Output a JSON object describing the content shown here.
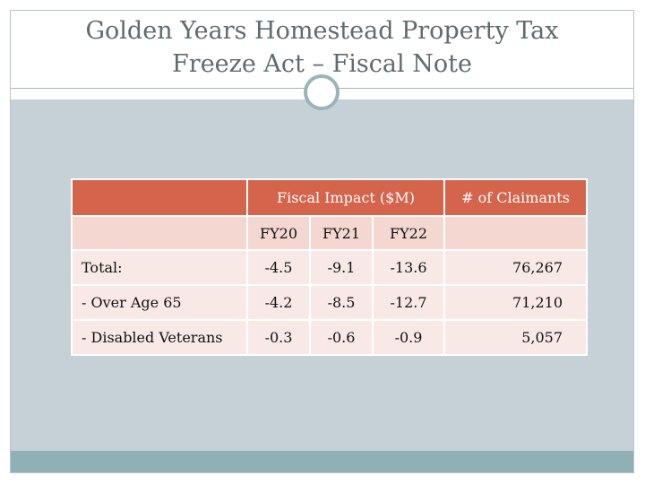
{
  "slide": {
    "title_line1": "Golden Years Homestead Property Tax",
    "title_line2": "Freeze Act – Fiscal Note"
  },
  "table": {
    "header_fiscal": "Fiscal Impact  ($M)",
    "header_claimants": "# of Claimants",
    "years": [
      "FY20",
      "FY21",
      "FY22"
    ],
    "rows": [
      {
        "label": "Total:",
        "values": [
          "-4.5",
          "-9.1",
          "-13.6"
        ],
        "claimants": "76,267"
      },
      {
        "label": "- Over Age 65",
        "values": [
          "-4.2",
          "-8.5",
          "-12.7"
        ],
        "claimants": "71,210"
      },
      {
        "label": "- Disabled Veterans",
        "values": [
          "-0.3",
          "-0.6",
          "-0.9"
        ],
        "claimants": "5,057"
      }
    ]
  },
  "colors": {
    "header": "#d4644b",
    "subheader": "#f4d7d1",
    "row": "#f8e9e7",
    "content_bg": "#c5d1d7",
    "bottom_bar": "#8fb0b4",
    "title_text": "#5f6b6e"
  }
}
